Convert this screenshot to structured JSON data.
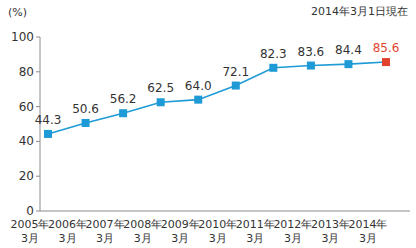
{
  "chart_data": {
    "type": "line",
    "annotation": "2014年3月1日現在",
    "y_label": "(%)",
    "categories": [
      "2005年\n3月",
      "2006年\n3月",
      "2007年\n3月",
      "2008年\n3月",
      "2009年\n3月",
      "2010年\n3月",
      "2011年\n3月",
      "2012年\n3月",
      "2013年\n3月",
      "2014年\n3月"
    ],
    "values": [
      44.3,
      50.6,
      56.2,
      62.5,
      64.0,
      72.1,
      82.3,
      83.6,
      84.4,
      85.6
    ],
    "value_labels": [
      "44.3",
      "50.6",
      "56.2",
      "62.5",
      "64.0",
      "72.1",
      "82.3",
      "83.6",
      "84.4",
      "85.6"
    ],
    "color": "#1e9ad6",
    "colors": [
      "#1e9ad6",
      "#1e9ad6",
      "#1e9ad6",
      "#1e9ad6",
      "#1e9ad6",
      "#1e9ad6",
      "#1e9ad6",
      "#1e9ad6",
      "#1e9ad6",
      "#e2432f"
    ],
    "ylim": [
      0,
      100
    ],
    "yticks": [
      0,
      20,
      40,
      60,
      80,
      100
    ],
    "grid": false,
    "data_labels": true,
    "marker": "square"
  }
}
